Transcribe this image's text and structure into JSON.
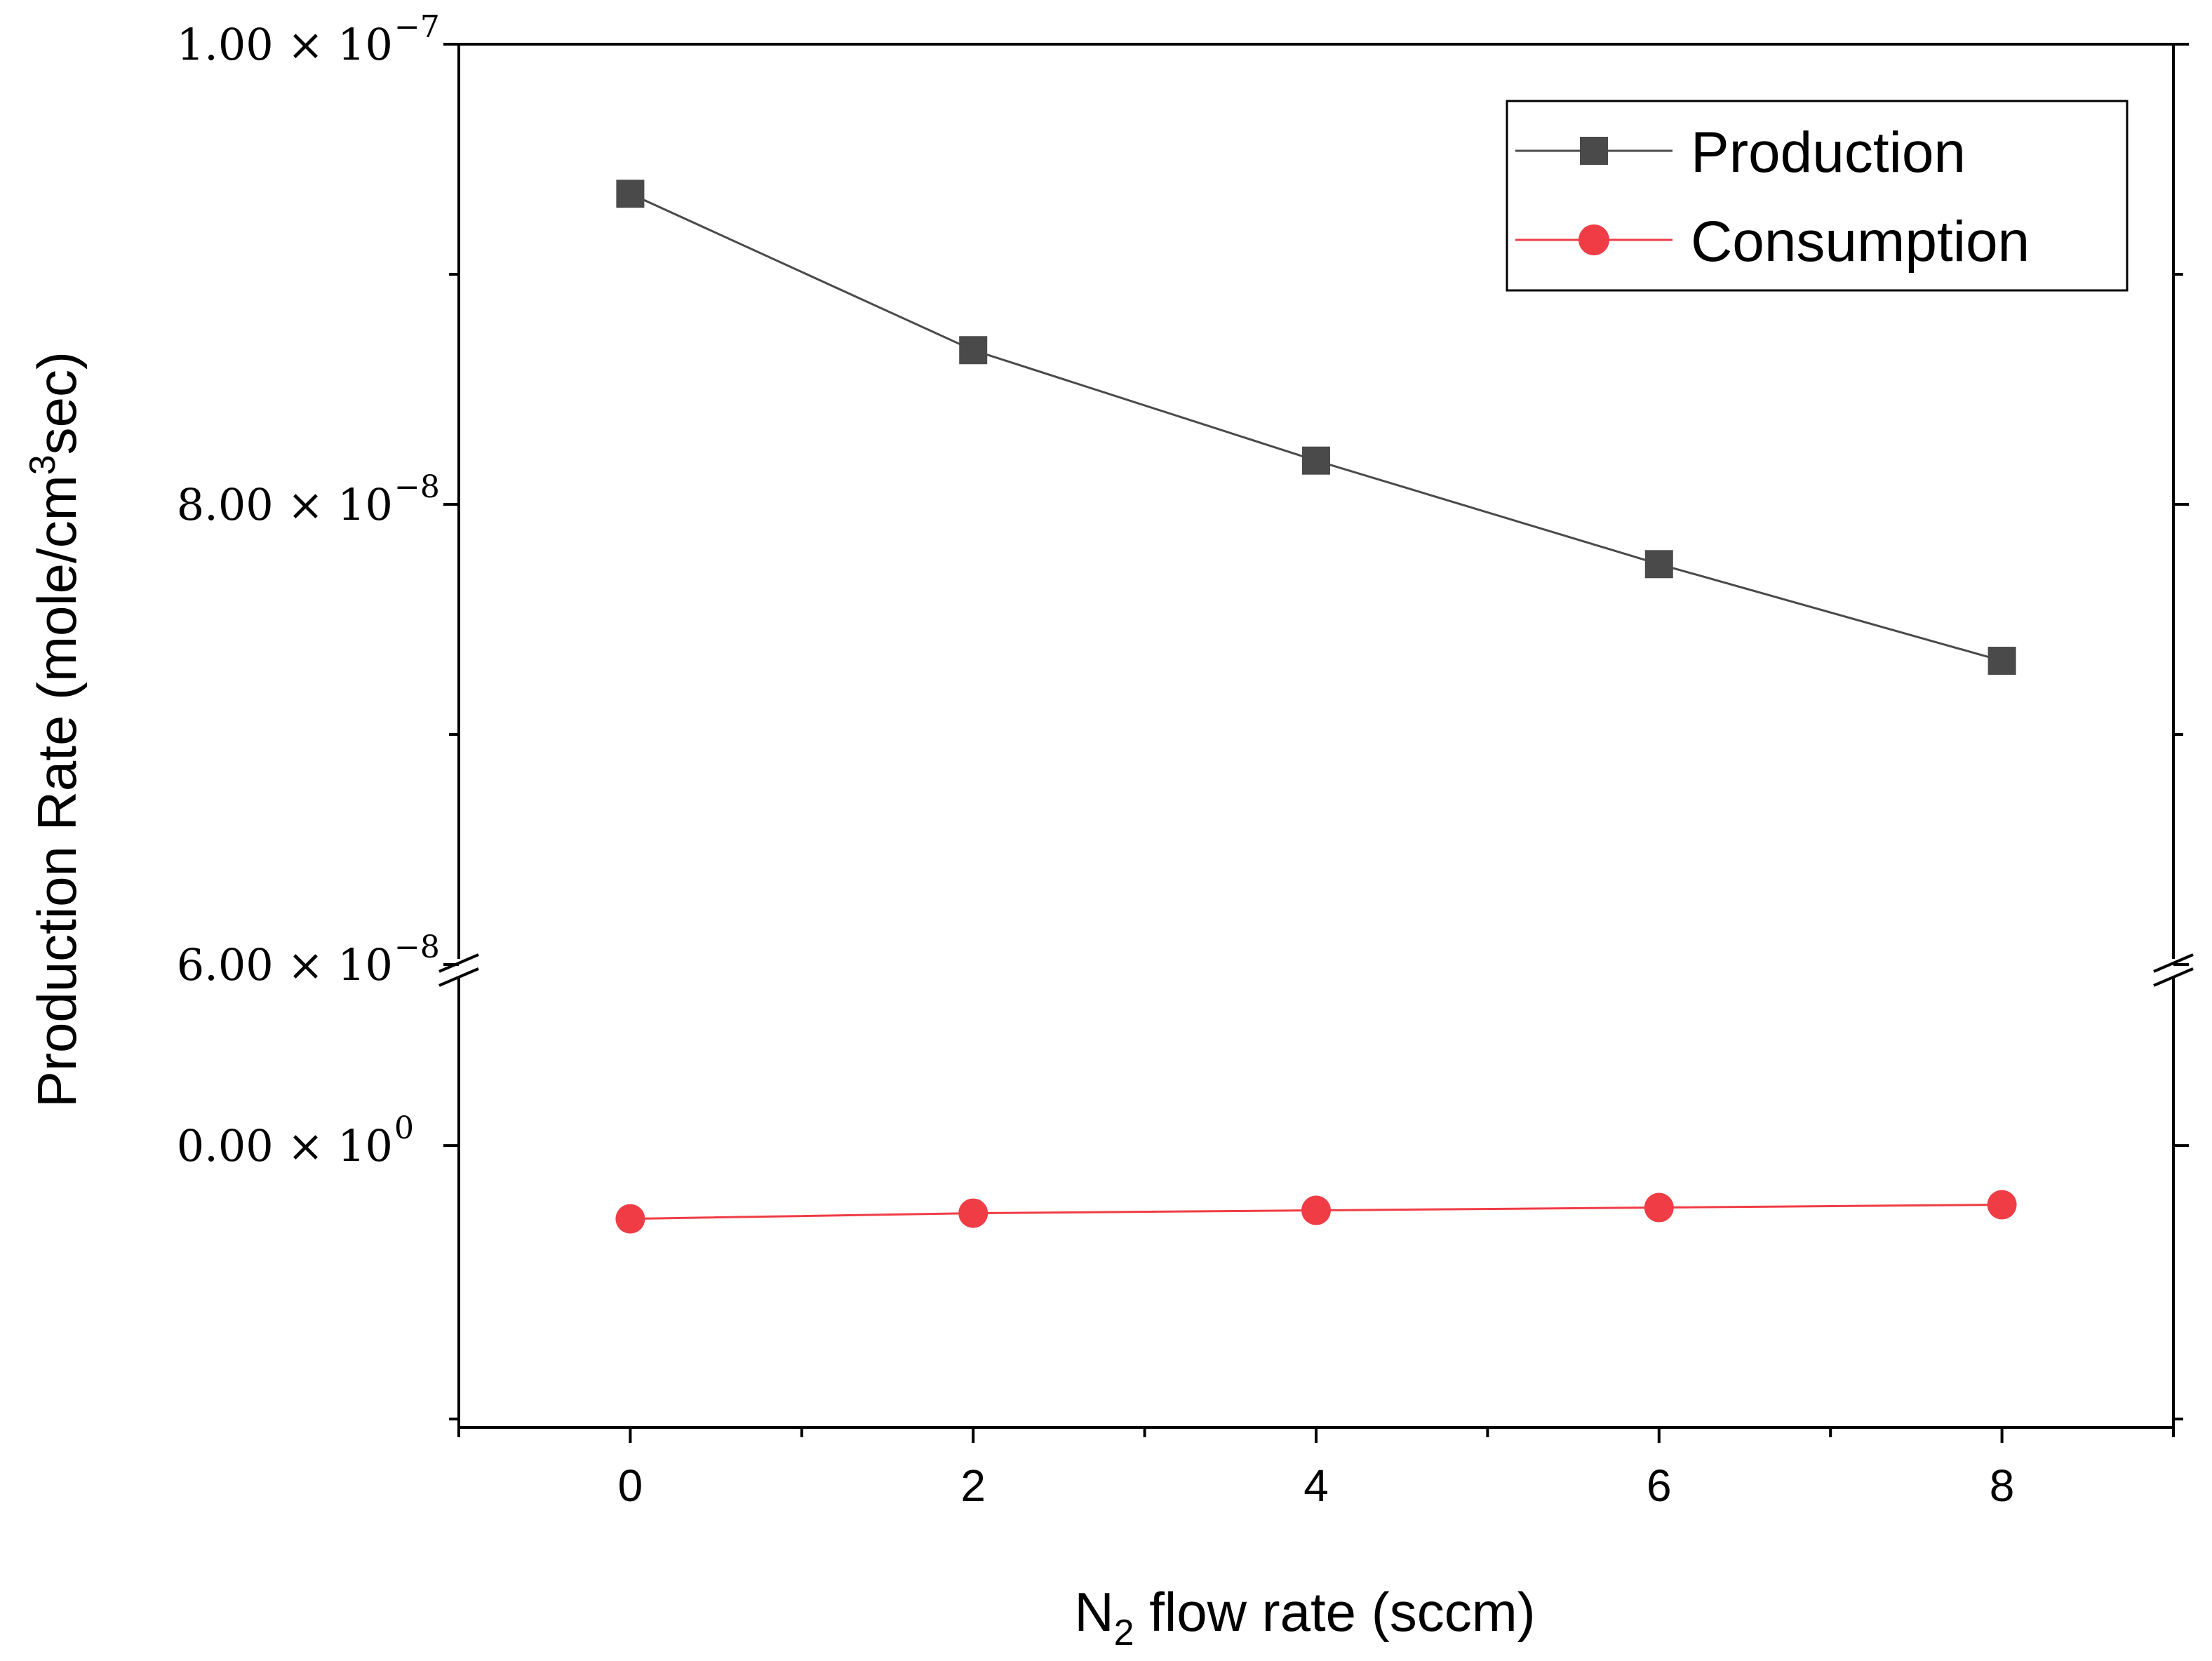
{
  "chart_data": {
    "type": "line",
    "title": "",
    "xlabel": {
      "main": "N",
      "subscript": "2",
      "rest": " flow rate (sccm)"
    },
    "ylabel": {
      "main": "Production Rate (mole/cm",
      "superscript": "3",
      "rest": "sec)"
    },
    "x": [
      0,
      2,
      4,
      6,
      8
    ],
    "xlim": [
      -1,
      9
    ],
    "xticks": [
      "0",
      "2",
      "4",
      "6",
      "8"
    ],
    "y_broken_axis": true,
    "y_segments": [
      {
        "name": "upper",
        "range": [
          6e-08,
          1e-07
        ]
      },
      {
        "name": "lower",
        "range": [
          -1e-08,
          6e-09
        ]
      }
    ],
    "yticks": [
      {
        "value": 1e-07,
        "mantissa": "1.00",
        "exponent": "−7"
      },
      {
        "value": 8e-08,
        "mantissa": "8.00",
        "exponent": "−8"
      },
      {
        "value": 6e-08,
        "mantissa": "6.00",
        "exponent": "−8"
      },
      {
        "value": 0,
        "mantissa": "0.00",
        "exponent": "0"
      }
    ],
    "ytick_prefix_times": "× 10",
    "series": [
      {
        "name": "Production",
        "color": "#4a4a4a",
        "marker": "square",
        "values": [
          9.35e-08,
          8.67e-08,
          8.19e-08,
          7.74e-08,
          7.32e-08
        ]
      },
      {
        "name": "Consumption",
        "color": "#f03c45",
        "marker": "circle",
        "values": [
          -2.6e-09,
          -2.4e-09,
          -2.3e-09,
          -2.2e-09,
          -2.1e-09
        ]
      }
    ],
    "legend_position": "top-right"
  }
}
